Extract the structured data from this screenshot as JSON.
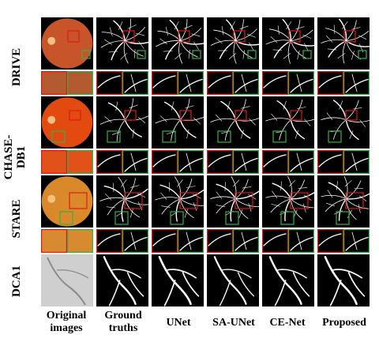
{
  "figure": {
    "row_labels": [
      "DRIVE",
      "CHASE-\nDB1",
      "STARE",
      "DCA1"
    ],
    "column_labels": [
      "Original\nimages",
      "Ground\ntruths",
      "UNet",
      "SA-UNet",
      "CE-Net",
      "Proposed"
    ],
    "colors": {
      "highlight_red": "#e0191b",
      "highlight_green": "#2fb34a",
      "panel_background": "#000000",
      "vessel": "#ffffff"
    }
  }
}
